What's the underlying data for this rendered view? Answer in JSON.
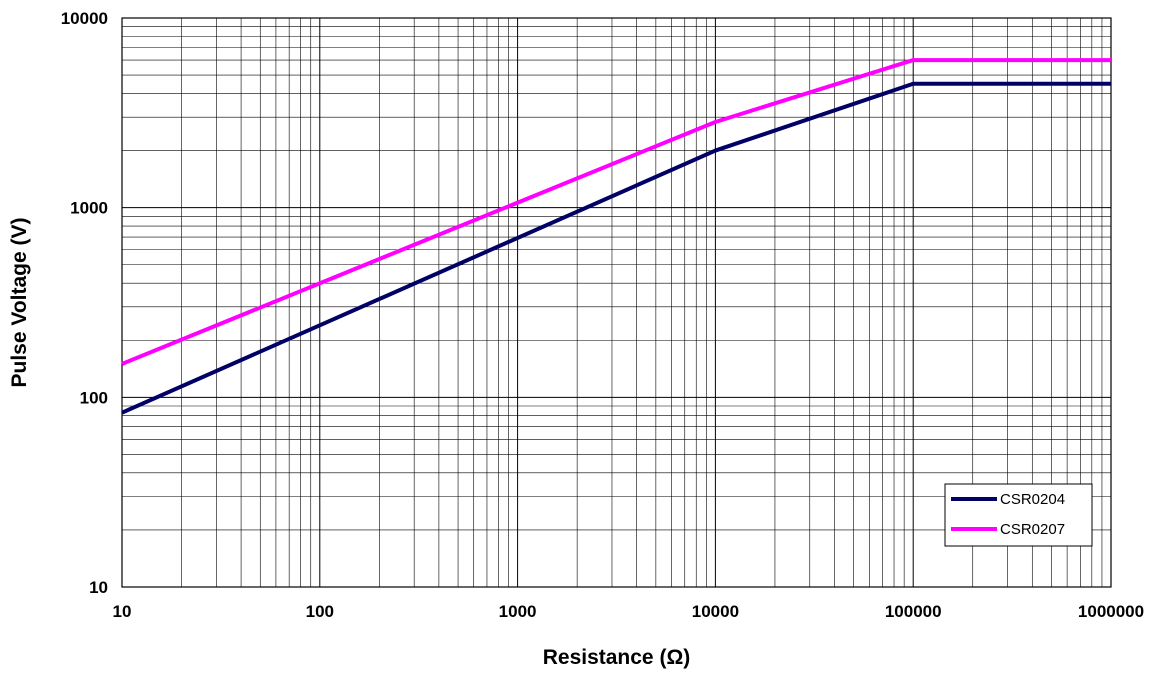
{
  "chart_data": {
    "type": "line",
    "title": "",
    "xlabel": "Resistance (Ω)",
    "ylabel": "Pulse Voltage (V)",
    "xscale": "log",
    "yscale": "log",
    "xlim": [
      10,
      1000000
    ],
    "ylim": [
      10,
      10000
    ],
    "grid": true,
    "legend_position": "bottom-right",
    "x_ticks": [
      "10",
      "100",
      "1000",
      "10000",
      "100000",
      "1000000"
    ],
    "y_ticks": [
      "10",
      "100",
      "1000",
      "10000"
    ],
    "series": [
      {
        "name": "CSR0204",
        "color": "#000066",
        "x": [
          10,
          10000,
          100000,
          1000000
        ],
        "y": [
          83,
          2000,
          4500,
          4500
        ]
      },
      {
        "name": "CSR0207",
        "color": "#ff00ff",
        "x": [
          10,
          10000,
          100000,
          1000000
        ],
        "y": [
          150,
          2830,
          6000,
          6000
        ]
      }
    ]
  }
}
